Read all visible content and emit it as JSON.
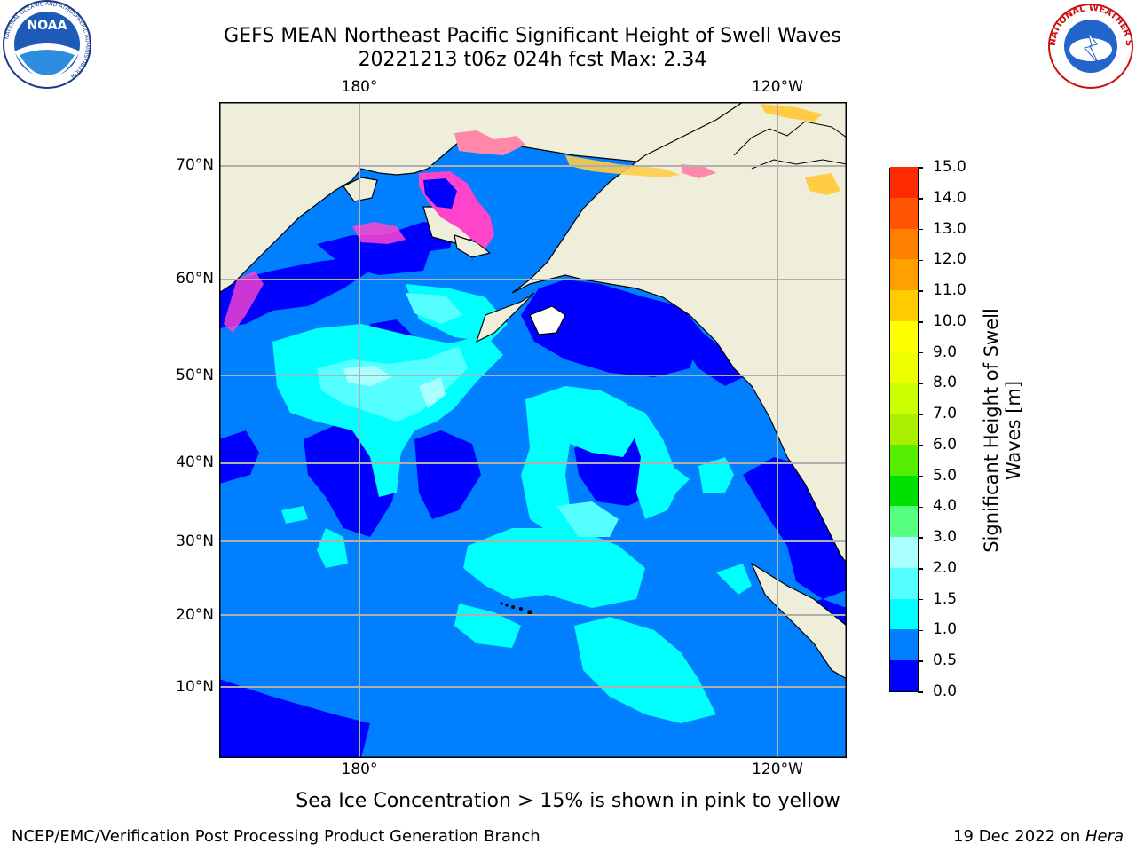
{
  "title": {
    "line1": "GEFS MEAN Northeast Pacific Significant Height of Swell Waves",
    "line2": "20221213 t06z 024h fcst   Max: 2.34"
  },
  "map": {
    "lon_labels_top": [
      "180°",
      "120°W"
    ],
    "lon_labels_bottom": [
      "180°",
      "120°W"
    ],
    "lat_labels": [
      "70°N",
      "60°N",
      "50°N",
      "40°N",
      "30°N",
      "20°N",
      "10°N"
    ],
    "land_color": "#efeedb",
    "ice_colors": [
      "#ff44cc",
      "#ff88aa",
      "#ffcc44"
    ]
  },
  "colorbar": {
    "label_line1": "Significant Height of Swell",
    "label_line2": "Waves [m]",
    "ticks": [
      "0.0",
      "0.5",
      "1.0",
      "1.5",
      "2.0",
      "3.0",
      "4.0",
      "5.0",
      "6.0",
      "7.0",
      "8.0",
      "9.0",
      "10.0",
      "11.0",
      "12.0",
      "13.0",
      "14.0",
      "15.0"
    ],
    "colors": [
      "#0000ff",
      "#0080ff",
      "#00ffff",
      "#55ffff",
      "#aaffff",
      "#55ff80",
      "#00e000",
      "#55ee00",
      "#aaee00",
      "#ccff00",
      "#eeff00",
      "#ffff00",
      "#ffcc00",
      "#ffa000",
      "#ff8000",
      "#ff5500",
      "#ff2b00",
      "#ff0000"
    ]
  },
  "ice_note": "Sea Ice Concentration > 15% is shown in pink to yellow",
  "footer": {
    "left": "NCEP/EMC/Verification Post Processing Product Generation Branch",
    "date": "19 Dec 2022 on ",
    "machine": "Hera"
  },
  "logos": {
    "noaa": "NOAA",
    "noaa_ring": "NATIONAL OCEANIC AND ATMOSPHERIC ADMINISTRATION",
    "nws_ring": "NATIONAL WEATHER SERVICE"
  }
}
